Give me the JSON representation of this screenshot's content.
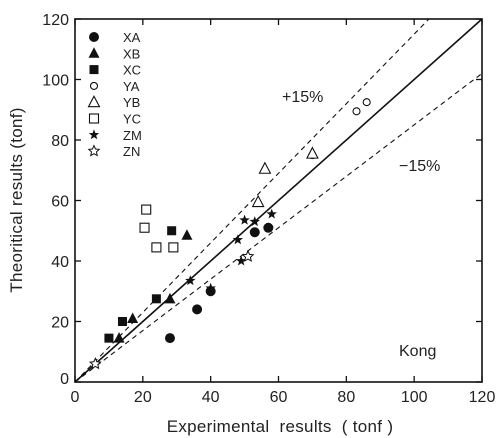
{
  "chart_data": {
    "type": "scatter",
    "title": "",
    "xlabel": "Experimental  results  ( tonf )",
    "ylabel": "Theoritical results (tonf)",
    "xlim": [
      0,
      120
    ],
    "ylim": [
      0,
      120
    ],
    "xticks": [
      "0",
      "20",
      "40",
      "60",
      "80",
      "100",
      "120"
    ],
    "yticks": [
      "0",
      "20",
      "40",
      "60",
      "80",
      "100",
      "120"
    ],
    "grid": false,
    "legend_position": "top-left",
    "annotations": {
      "plus": "+15%",
      "minus": "−15%",
      "corner": "Kong"
    },
    "reference_lines": [
      {
        "label": "y = x",
        "style": "solid",
        "slope": 1.0
      },
      {
        "label": "+15%",
        "style": "dashed",
        "slope": 1.15
      },
      {
        "label": "−15%",
        "style": "dashed",
        "slope": 0.85
      }
    ],
    "series": [
      {
        "name": "XA",
        "marker": "filled-circle",
        "points": [
          [
            28,
            14.5
          ],
          [
            36,
            24
          ],
          [
            40,
            30
          ],
          [
            53,
            49.5
          ],
          [
            57,
            51
          ]
        ]
      },
      {
        "name": "XB",
        "marker": "filled-triangle",
        "points": [
          [
            13,
            14.5
          ],
          [
            17,
            21
          ],
          [
            28,
            27.5
          ],
          [
            33,
            48.5
          ]
        ]
      },
      {
        "name": "XC",
        "marker": "filled-square",
        "points": [
          [
            10,
            14.5
          ],
          [
            14,
            20
          ],
          [
            24,
            27.5
          ],
          [
            28.5,
            50
          ]
        ]
      },
      {
        "name": "YA",
        "marker": "open-circle",
        "points": [
          [
            83,
            89.5
          ],
          [
            86,
            92.5
          ],
          [
            70,
            75
          ]
        ]
      },
      {
        "name": "YB",
        "marker": "open-triangle",
        "points": [
          [
            56,
            70.5
          ],
          [
            54,
            59.5
          ],
          [
            70,
            75.5
          ]
        ]
      },
      {
        "name": "YC",
        "marker": "open-square",
        "points": [
          [
            21,
            57
          ],
          [
            20.5,
            51
          ],
          [
            24,
            44.5
          ],
          [
            29,
            44.5
          ]
        ]
      },
      {
        "name": "ZM",
        "marker": "star",
        "points": [
          [
            34,
            33.5
          ],
          [
            40,
            31
          ],
          [
            48,
            47
          ],
          [
            50,
            53.5
          ],
          [
            53,
            53
          ],
          [
            58,
            55.5
          ],
          [
            49,
            40
          ],
          [
            57,
            51
          ]
        ]
      },
      {
        "name": "ZN",
        "marker": "open-star",
        "points": [
          [
            51,
            41.5
          ],
          [
            6,
            6
          ]
        ]
      }
    ]
  }
}
